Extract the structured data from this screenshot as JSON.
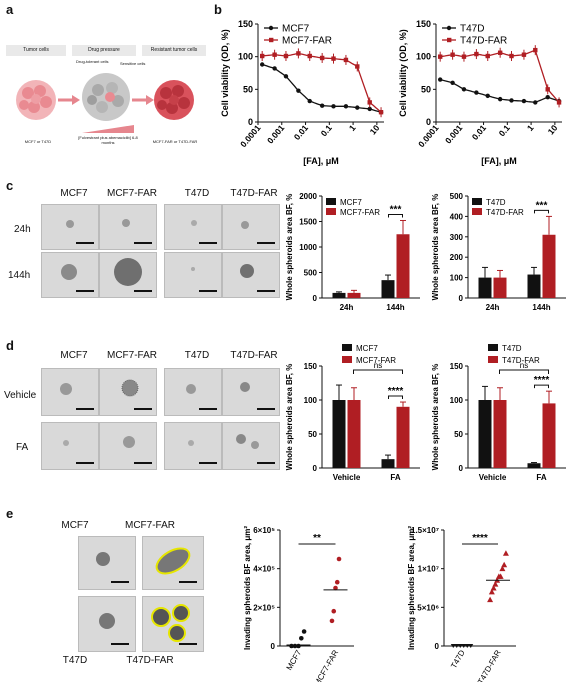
{
  "panels": {
    "a": "a",
    "b": "b",
    "c": "c",
    "d": "d",
    "e": "e"
  },
  "schematic": {
    "stage1": "Tumor cells",
    "stage2": "Drug pressure",
    "stage3": "Resistant tumor cells",
    "cell_label1": "Drug-tolerant cells",
    "cell_label2": "Sensitive cells",
    "left_caption": "MCF7 or T47D",
    "treatment_caption": "[Fulvestrant plus abemaciclib] 6-8 months",
    "right_caption": "MCF7-FAR or T47D-FAR"
  },
  "microscopy": {
    "c": {
      "cols": [
        "MCF7",
        "MCF7-FAR",
        "T47D",
        "T47D-FAR"
      ],
      "rows": [
        "24h",
        "144h"
      ]
    },
    "d": {
      "cols": [
        "MCF7",
        "MCF7-FAR",
        "T47D",
        "T47D-FAR"
      ],
      "rows": [
        "Vehicle",
        "FA"
      ]
    },
    "e": {
      "labels": [
        "MCF7",
        "MCF7-FAR",
        "T47D",
        "T47D-FAR"
      ]
    }
  },
  "colors": {
    "black": "#111111",
    "red": "#b01e23"
  },
  "chart_data": [
    {
      "id": "b-left",
      "type": "line",
      "xlabel": "[FA], μM",
      "ylabel": "Cell viability (OD, %)",
      "xscale": "log",
      "xticks": [
        "0.0001",
        "0.001",
        "0.01",
        "0.1",
        "1",
        "10"
      ],
      "yticks": [
        "0",
        "50",
        "100",
        "150"
      ],
      "ylim": [
        0,
        150
      ],
      "legend": "top-left",
      "series": [
        {
          "name": "MCF7",
          "color": "#111111",
          "x": [
            0.00015,
            0.0005,
            0.0015,
            0.005,
            0.015,
            0.05,
            0.15,
            0.5,
            1.5,
            5,
            15
          ],
          "y": [
            88,
            82,
            70,
            48,
            32,
            25,
            24,
            24,
            22,
            20,
            15
          ]
        },
        {
          "name": "MCF7-FAR",
          "color": "#b01e23",
          "x": [
            0.00015,
            0.0005,
            0.0015,
            0.005,
            0.015,
            0.05,
            0.15,
            0.5,
            1.5,
            5,
            15
          ],
          "y": [
            101,
            103,
            101,
            105,
            101,
            98,
            97,
            95,
            85,
            30,
            15
          ]
        }
      ]
    },
    {
      "id": "b-right",
      "type": "line",
      "xlabel": "[FA], μM",
      "ylabel": "Cell viability (OD, %)",
      "xscale": "log",
      "xticks": [
        "0.0001",
        "0.001",
        "0.01",
        "0.1",
        "1",
        "10"
      ],
      "yticks": [
        "0",
        "50",
        "100",
        "150"
      ],
      "ylim": [
        0,
        150
      ],
      "legend": "top-left",
      "series": [
        {
          "name": "T47D",
          "color": "#111111",
          "x": [
            0.00015,
            0.0005,
            0.0015,
            0.005,
            0.015,
            0.05,
            0.15,
            0.5,
            1.5,
            5,
            15
          ],
          "y": [
            65,
            60,
            50,
            45,
            40,
            35,
            33,
            32,
            30,
            38,
            32
          ]
        },
        {
          "name": "T47D-FAR",
          "color": "#b01e23",
          "x": [
            0.00015,
            0.0005,
            0.0015,
            0.005,
            0.015,
            0.05,
            0.15,
            0.5,
            1.5,
            5,
            15
          ],
          "y": [
            100,
            103,
            100,
            104,
            101,
            106,
            101,
            103,
            110,
            50,
            30
          ]
        }
      ]
    },
    {
      "id": "c-left",
      "type": "bar",
      "ylabel": "Whole spheroids area BF, %",
      "ylim": [
        0,
        2000
      ],
      "yticks": [
        "0",
        "500",
        "1000",
        "1500",
        "2000"
      ],
      "categories": [
        "24h",
        "144h"
      ],
      "legend": "top-left",
      "series": [
        {
          "name": "MCF7",
          "color": "#111111",
          "values": [
            100,
            350
          ],
          "err": [
            20,
            100
          ]
        },
        {
          "name": "MCF7-FAR",
          "color": "#b01e23",
          "values": [
            100,
            1250
          ],
          "err": [
            50,
            270
          ]
        }
      ],
      "annotations": [
        {
          "text": "***",
          "group": 1
        }
      ]
    },
    {
      "id": "c-right",
      "type": "bar",
      "ylabel": "Whole spheroids area BF, %",
      "ylim": [
        0,
        500
      ],
      "yticks": [
        "0",
        "100",
        "200",
        "300",
        "400",
        "500"
      ],
      "categories": [
        "24h",
        "144h"
      ],
      "legend": "top-left",
      "series": [
        {
          "name": "T47D",
          "color": "#111111",
          "values": [
            100,
            115
          ],
          "err": [
            50,
            35
          ]
        },
        {
          "name": "T47D-FAR",
          "color": "#b01e23",
          "values": [
            100,
            310
          ],
          "err": [
            35,
            90
          ]
        }
      ],
      "annotations": [
        {
          "text": "***",
          "group": 1
        }
      ]
    },
    {
      "id": "d-left",
      "type": "bar",
      "ylabel": "Whole spheroids area BF, %",
      "ylim": [
        0,
        150
      ],
      "yticks": [
        "0",
        "50",
        "100",
        "150"
      ],
      "categories": [
        "Vehicle",
        "FA"
      ],
      "legend": "top",
      "series": [
        {
          "name": "MCF7",
          "color": "#111111",
          "values": [
            100,
            13
          ],
          "err": [
            22,
            6
          ]
        },
        {
          "name": "MCF7-FAR",
          "color": "#b01e23",
          "values": [
            100,
            90
          ],
          "err": [
            18,
            7
          ]
        }
      ],
      "annotations": [
        {
          "text": "ns",
          "type": "vehicle-fa"
        },
        {
          "text": "****",
          "group": 1
        }
      ]
    },
    {
      "id": "d-right",
      "type": "bar",
      "ylabel": "Whole spheroids area BF, %",
      "ylim": [
        0,
        150
      ],
      "yticks": [
        "0",
        "50",
        "100",
        "150"
      ],
      "categories": [
        "Vehicle",
        "FA"
      ],
      "legend": "top",
      "series": [
        {
          "name": "T47D",
          "color": "#111111",
          "values": [
            100,
            7
          ],
          "err": [
            20,
            1
          ]
        },
        {
          "name": "T47D-FAR",
          "color": "#b01e23",
          "values": [
            100,
            95
          ],
          "err": [
            18,
            18
          ]
        }
      ],
      "annotations": [
        {
          "text": "ns",
          "type": "vehicle-fa"
        },
        {
          "text": "****",
          "group": 1
        }
      ]
    },
    {
      "id": "e-left",
      "type": "scatter",
      "ylabel": "Invading spheroids BF area, μm²",
      "ylim": [
        0,
        600000
      ],
      "yticks": [
        "0",
        "2×10⁵",
        "4×10⁵",
        "6×10⁵"
      ],
      "categories": [
        "MCF7",
        "MCF7-FAR"
      ],
      "series": [
        {
          "name": "MCF7",
          "color": "#111111",
          "values": [
            0,
            0,
            0,
            40000,
            75000
          ],
          "median": 5000
        },
        {
          "name": "MCF7-FAR",
          "color": "#b01e23",
          "values": [
            130000,
            180000,
            300000,
            330000,
            450000
          ],
          "median": 290000
        }
      ],
      "annotations": [
        {
          "text": "**"
        }
      ]
    },
    {
      "id": "e-right",
      "type": "scatter",
      "ylabel": "Invading spheroids BF area, μm²",
      "ylim": [
        0,
        15000000
      ],
      "yticks": [
        "0",
        "5×10⁶",
        "1×10⁷",
        "1.5×10⁷"
      ],
      "categories": [
        "T47D",
        "T47D-FAR"
      ],
      "series": [
        {
          "name": "T47D",
          "color": "#111111",
          "values": [
            0,
            0,
            0,
            0,
            0,
            0
          ],
          "median": 0
        },
        {
          "name": "T47D-FAR",
          "color": "#b01e23",
          "values": [
            6000000,
            7000000,
            7500000,
            8000000,
            8500000,
            9000000,
            9000000,
            10000000,
            10500000,
            12000000
          ],
          "median": 8500000
        }
      ],
      "annotations": [
        {
          "text": "****"
        }
      ]
    }
  ]
}
